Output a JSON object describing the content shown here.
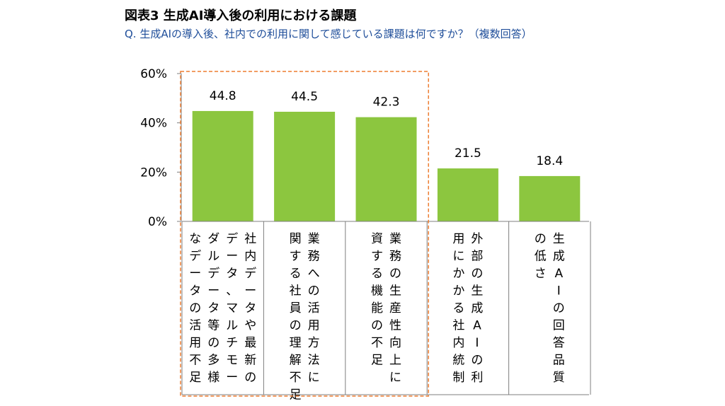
{
  "header": {
    "title": "図表3 生成AI導入後の利用における課題",
    "subtitle": "Q. 生成AIの導入後、社内での利用に関して感じている課題は何ですか？（複数回答）"
  },
  "colors": {
    "bar": "#8cc63f",
    "highlight": "#ed7d31",
    "subtitle": "#1f4e9a"
  },
  "chart_data": {
    "type": "bar",
    "title": "図表3 生成AI導入後の利用における課題",
    "subtitle": "Q. 生成AIの導入後、社内での利用に関して感じている課題は何ですか？（複数回答）",
    "categories": [
      "社内データや最新のデータ、マルチモーダルデータ等の多様なデータの活用不足",
      "業務への活用方法に関する社員の理解不足",
      "業務の生産性向上に資する機能の不足",
      "外部の生成AIの利用にかかる社内統制",
      "生成AIの回答品質の低さ"
    ],
    "category_columns": [
      [
        "社内データや最新の",
        "データ、マルチモー",
        "ダルデータ等の多様",
        "なデータの活用不足"
      ],
      [
        "業務への活用方法に",
        "関する社員の理解不足"
      ],
      [
        "業務の生産性向上に",
        "資する機能の不足"
      ],
      [
        "外部の生成AIの利",
        "用にかかる社内統制"
      ],
      [
        "生成AIの回答品質",
        "の低さ"
      ]
    ],
    "values": [
      44.8,
      44.5,
      42.3,
      21.5,
      18.4
    ],
    "value_labels": [
      "44.8",
      "44.5",
      "42.3",
      "21.5",
      "18.4"
    ],
    "yticks": [
      0,
      20,
      40,
      60
    ],
    "ytick_labels": [
      "0%",
      "20%",
      "40%",
      "60%"
    ],
    "ylim": [
      0,
      60
    ],
    "grid": false,
    "legend": "none",
    "highlighted_categories": [
      0,
      1,
      2
    ]
  }
}
